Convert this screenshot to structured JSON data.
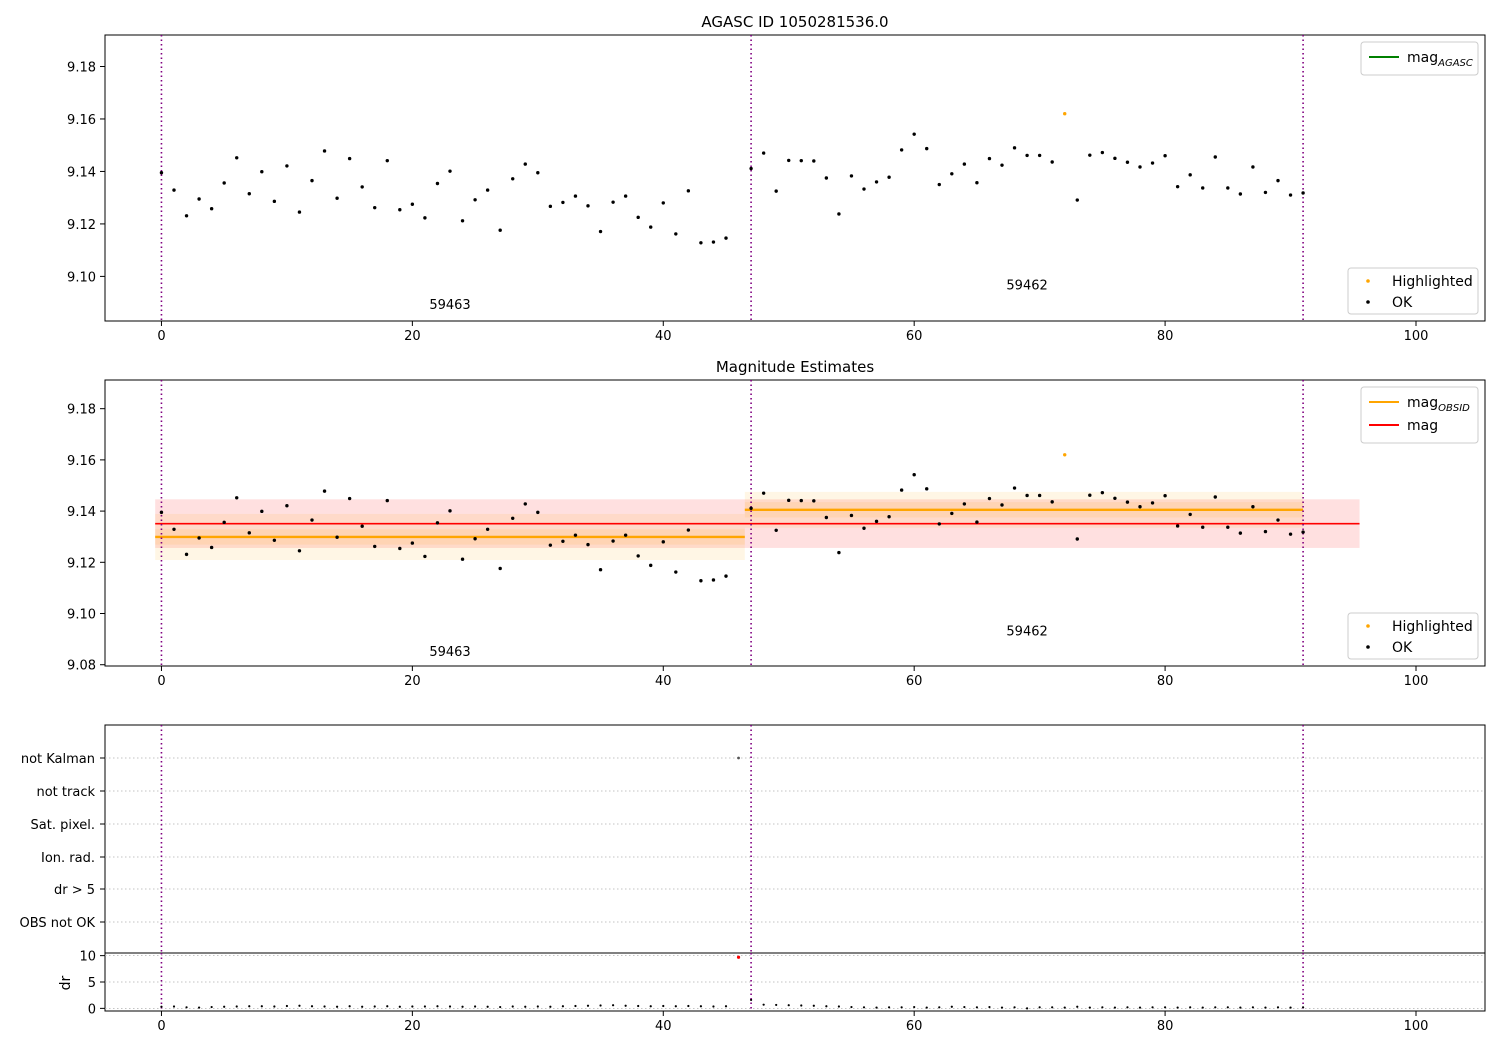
{
  "chart_data": [
    {
      "type": "scatter",
      "title": "AGASC ID 1050281536.0",
      "xlim": [
        -4.5,
        105.5
      ],
      "ylim": [
        9.083,
        9.192
      ],
      "xticks": [
        0,
        20,
        40,
        60,
        80,
        100
      ],
      "yticks": [
        9.1,
        9.12,
        9.14,
        9.16,
        9.18
      ],
      "ytick_labels": [
        "9.10",
        "9.12",
        "9.14",
        "9.16",
        "9.18"
      ],
      "obs_boundaries": [
        0,
        47,
        91
      ],
      "obs_labels": [
        {
          "text": "59463",
          "x": 23,
          "y": 9.0875
        },
        {
          "text": "59462",
          "x": 69,
          "y": 9.095
        }
      ],
      "series": [
        {
          "name": "OK",
          "color": "#000000",
          "x": [
            0,
            1,
            2,
            3,
            4,
            5,
            6,
            7,
            8,
            9,
            10,
            11,
            12,
            13,
            14,
            15,
            16,
            17,
            18,
            19,
            20,
            21,
            22,
            23,
            24,
            25,
            26,
            27,
            28,
            29,
            30,
            31,
            32,
            33,
            34,
            35,
            36,
            37,
            38,
            39,
            40,
            41,
            42,
            43,
            44,
            45,
            47,
            48,
            49,
            50,
            51,
            52,
            53,
            54,
            55,
            56,
            57,
            58,
            59,
            60,
            61,
            62,
            63,
            64,
            65,
            66,
            67,
            68,
            69,
            70,
            71,
            73,
            74,
            75,
            76,
            77,
            78,
            79,
            80,
            81,
            82,
            83,
            84,
            85,
            86,
            87,
            88,
            89,
            90,
            91
          ],
          "y": [
            9.1395,
            9.1329,
            9.1231,
            9.1295,
            9.1258,
            9.1356,
            9.1452,
            9.1315,
            9.1399,
            9.1286,
            9.1421,
            9.1245,
            9.1365,
            9.1478,
            9.1298,
            9.1449,
            9.1341,
            9.1262,
            9.1441,
            9.1254,
            9.1275,
            9.1223,
            9.1354,
            9.1401,
            9.1212,
            9.1292,
            9.1329,
            9.1176,
            9.1372,
            9.1428,
            9.1395,
            9.1267,
            9.1282,
            9.1306,
            9.1269,
            9.1171,
            9.1283,
            9.1306,
            9.1225,
            9.1188,
            9.128,
            9.1162,
            9.1326,
            9.1128,
            9.1131,
            9.1146,
            9.1411,
            9.147,
            9.1325,
            9.1442,
            9.1441,
            9.144,
            9.1375,
            9.1238,
            9.1383,
            9.1333,
            9.136,
            9.1378,
            9.1482,
            9.1542,
            9.1487,
            9.135,
            9.1391,
            9.1428,
            9.1357,
            9.1449,
            9.1424,
            9.149,
            9.1461,
            9.1461,
            9.1436,
            9.1291,
            9.1462,
            9.1472,
            9.145,
            9.1435,
            9.1417,
            9.1432,
            9.146,
            9.1342,
            9.1387,
            9.1337,
            9.1455,
            9.1337,
            9.1314,
            9.1417,
            9.132,
            9.1365,
            9.131,
            9.1318
          ]
        },
        {
          "name": "Highlighted",
          "color": "#ffa500",
          "x": [
            72
          ],
          "y": [
            9.162
          ]
        }
      ],
      "legend_lines": [
        {
          "name": "mag",
          "sub": "AGASC",
          "color": "#008000"
        }
      ],
      "legend_points": [
        {
          "name": "Highlighted",
          "color": "#ffa500"
        },
        {
          "name": "OK",
          "color": "#000000"
        }
      ]
    },
    {
      "type": "scatter",
      "title": "Magnitude Estimates",
      "xlim": [
        -4.5,
        105.5
      ],
      "ylim": [
        9.0795,
        9.1912
      ],
      "xticks": [
        0,
        20,
        40,
        60,
        80,
        100
      ],
      "yticks": [
        9.08,
        9.1,
        9.12,
        9.14,
        9.16,
        9.18
      ],
      "ytick_labels": [
        "9.08",
        "9.10",
        "9.12",
        "9.14",
        "9.16",
        "9.18"
      ],
      "obs_boundaries": [
        0,
        47,
        91
      ],
      "obs_labels": [
        {
          "text": "59463",
          "x": 23,
          "y": 9.0835
        },
        {
          "text": "59462",
          "x": 69,
          "y": 9.0915
        }
      ],
      "bands": [
        {
          "x0": -0.5,
          "x1": 95.5,
          "y0": 9.1256,
          "y1": 9.1446,
          "color": "#ff0000",
          "opacity": 0.12
        },
        {
          "x0": -0.5,
          "x1": 46.5,
          "y0": 9.1209,
          "y1": 9.1389,
          "color": "#ffa500",
          "opacity": 0.1
        },
        {
          "x0": -0.5,
          "x1": 46.5,
          "y0": 9.1269,
          "y1": 9.1329,
          "color": "#ffa500",
          "opacity": 0.1
        },
        {
          "x0": 46.5,
          "x1": 91.0,
          "y0": 9.1335,
          "y1": 9.1475,
          "color": "#ffa500",
          "opacity": 0.1
        },
        {
          "x0": 46.5,
          "x1": 91.0,
          "y0": 9.1375,
          "y1": 9.1435,
          "color": "#ffa500",
          "opacity": 0.1
        }
      ],
      "lines": [
        {
          "name": "mag",
          "color": "#ff0000",
          "x0": -0.5,
          "x1": 95.5,
          "y": 9.1351
        },
        {
          "name": "mag OBSID 59463",
          "color": "#ffa500",
          "x0": -0.5,
          "x1": 46.5,
          "y": 9.1299
        },
        {
          "name": "mag OBSID 59462",
          "color": "#ffa500",
          "x0": 46.5,
          "x1": 91.0,
          "y": 9.1405
        }
      ],
      "series_ref": 0,
      "legend_lines": [
        {
          "name": "mag",
          "sub": "OBSID",
          "color": "#ffa500"
        },
        {
          "name": "mag",
          "sub": "",
          "color": "#ff0000"
        }
      ],
      "legend_points": [
        {
          "name": "Highlighted",
          "color": "#ffa500"
        },
        {
          "name": "OK",
          "color": "#000000"
        }
      ]
    },
    {
      "type": "scatter",
      "title": "",
      "xlim": [
        -4.5,
        105.5
      ],
      "categories": [
        "not Kalman",
        "not track",
        "Sat. pixel.",
        "Ion. rad.",
        "dr > 5",
        "OBS not OK"
      ],
      "flags": [
        {
          "category": "not Kalman",
          "x": 46
        }
      ],
      "obs_boundaries": [
        0,
        47,
        91
      ]
    },
    {
      "type": "scatter",
      "title": "",
      "xlim": [
        -4.5,
        105.5
      ],
      "ylim": [
        -0.5,
        10.5
      ],
      "xticks": [
        0,
        20,
        40,
        60,
        80,
        100
      ],
      "yticks": [
        0,
        5,
        10
      ],
      "ytick_labels": [
        "0",
        "5",
        "10"
      ],
      "ylabel": "dr",
      "obs_boundaries": [
        0,
        47,
        91
      ],
      "dr_x": [
        0,
        1,
        2,
        3,
        4,
        5,
        6,
        7,
        8,
        9,
        10,
        11,
        12,
        13,
        14,
        15,
        16,
        17,
        18,
        19,
        20,
        21,
        22,
        23,
        24,
        25,
        26,
        27,
        28,
        29,
        30,
        31,
        32,
        33,
        34,
        35,
        36,
        37,
        38,
        39,
        40,
        41,
        42,
        43,
        44,
        45,
        46,
        47,
        48,
        49,
        50,
        51,
        52,
        53,
        54,
        55,
        56,
        57,
        58,
        59,
        60,
        61,
        62,
        63,
        64,
        65,
        66,
        67,
        68,
        69,
        70,
        71,
        72,
        73,
        74,
        75,
        76,
        77,
        78,
        79,
        80,
        81,
        82,
        83,
        84,
        85,
        86,
        87,
        88,
        89,
        90,
        91
      ],
      "dr_y": [
        0.3,
        0.35,
        0.2,
        0.15,
        0.25,
        0.3,
        0.35,
        0.4,
        0.4,
        0.35,
        0.45,
        0.5,
        0.4,
        0.35,
        0.3,
        0.4,
        0.3,
        0.35,
        0.4,
        0.3,
        0.35,
        0.35,
        0.4,
        0.35,
        0.3,
        0.35,
        0.3,
        0.25,
        0.35,
        0.3,
        0.35,
        0.3,
        0.4,
        0.45,
        0.5,
        0.55,
        0.6,
        0.5,
        0.45,
        0.4,
        0.45,
        0.4,
        0.45,
        0.4,
        0.35,
        0.4,
        9.7,
        1.6,
        0.7,
        0.65,
        0.6,
        0.55,
        0.5,
        0.4,
        0.35,
        0.25,
        0.2,
        0.15,
        0.2,
        0.2,
        0.25,
        0.15,
        0.2,
        0.3,
        0.25,
        0.2,
        0.25,
        0.15,
        0.2,
        0.0,
        0.2,
        0.2,
        0.15,
        0.3,
        0.15,
        0.2,
        0.15,
        0.2,
        0.15,
        0.2,
        0.2,
        0.15,
        0.2,
        0.15,
        0.2,
        0.2,
        0.15,
        0.2,
        0.15,
        0.2,
        0.15,
        0.2
      ],
      "dr_highlight": {
        "x": 46,
        "y": 9.7,
        "color": "#ff0000"
      }
    }
  ]
}
